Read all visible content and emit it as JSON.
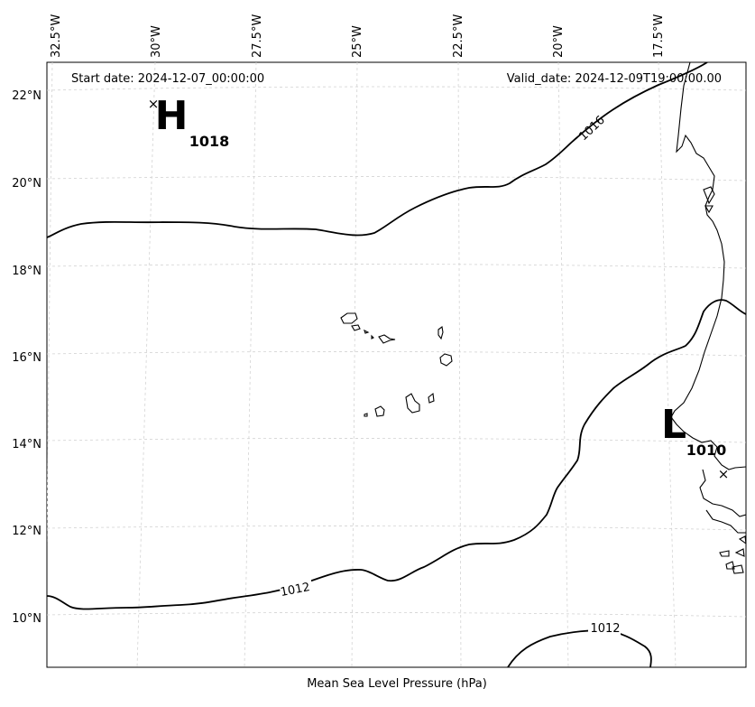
{
  "map": {
    "start_date": "Start date: 2024-12-07_00:00:00",
    "valid_date": "Valid_date: 2024-12-09T19:00:00.00",
    "caption": "Mean Sea Level Pressure (hPa)",
    "lon_labels": [
      "32.5°W",
      "30°W",
      "27.5°W",
      "25°W",
      "22.5°W",
      "20°W",
      "17.5°W"
    ],
    "lat_labels": [
      "22°N",
      "20°N",
      "18°N",
      "16°N",
      "14°N",
      "12°N",
      "10°N"
    ],
    "high": {
      "letter": "H",
      "value": "1018",
      "marker": "×"
    },
    "low": {
      "letter": "L",
      "value": "1010",
      "marker": "×"
    },
    "contour_labels": [
      "1016",
      "1012",
      "1012"
    ]
  }
}
